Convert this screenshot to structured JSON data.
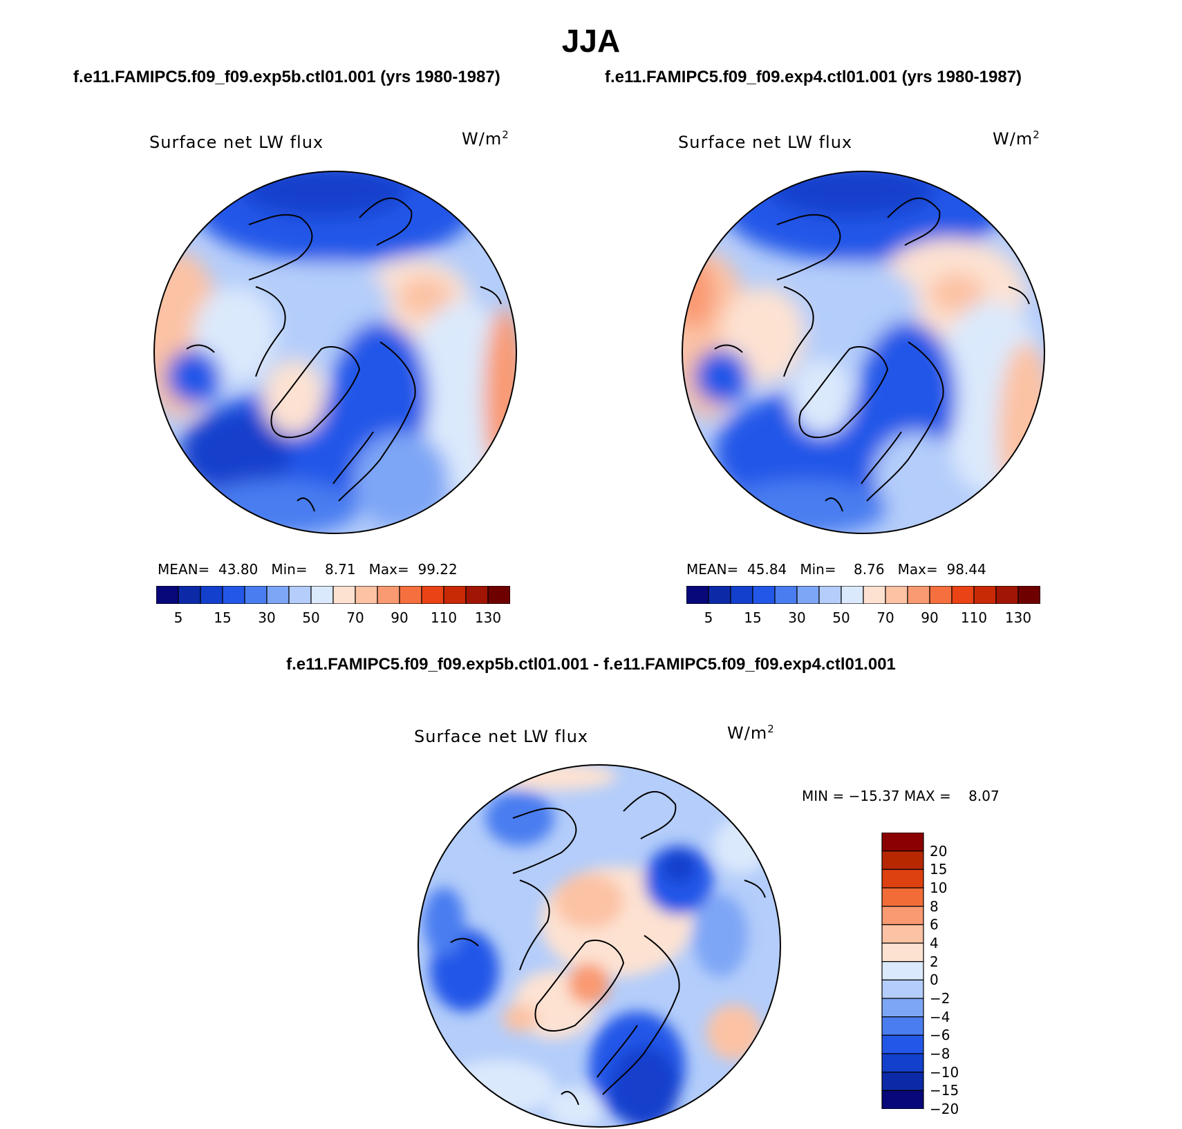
{
  "figure": {
    "season": "JJA",
    "case_a_title": "f.e11.FAMIPC5.f09_f09.exp5b.ctl01.001 (yrs 1980-1987)",
    "case_b_title": "f.e11.FAMIPC5.f09_f09.exp4.ctl01.001 (yrs 1980-1987)",
    "diff_title": "f.e11.FAMIPC5.f09_f09.exp5b.ctl01.001 - f.e11.FAMIPC5.f09_f09.exp4.ctl01.001"
  },
  "panels": {
    "left": {
      "variable": "Surface net LW flux",
      "units_base": "W/m",
      "units_exp": "2",
      "mean_label": "MEAN=",
      "mean": "43.80",
      "min_label": "Min=",
      "min": "8.71",
      "max_label": "Max=",
      "max": "99.22"
    },
    "right": {
      "variable": "Surface net LW flux",
      "units_base": "W/m",
      "units_exp": "2",
      "mean_label": "MEAN=",
      "mean": "45.84",
      "min_label": "Min=",
      "min": "8.76",
      "max_label": "Max=",
      "max": "98.44"
    },
    "diff": {
      "variable": "Surface net LW flux",
      "units_base": "W/m",
      "units_exp": "2",
      "min_label": "MIN =",
      "min": "−15.37",
      "max_label": "MAX =",
      "max": "8.07"
    }
  },
  "colorbars": {
    "main": {
      "colors": [
        "#08087a",
        "#0c2aa8",
        "#1340cc",
        "#2357e8",
        "#4a7df0",
        "#7ea6f6",
        "#b4cdfa",
        "#dbe9fc",
        "#fde2d2",
        "#fcc2a4",
        "#f99a72",
        "#f6703f",
        "#ea4315",
        "#c92a06",
        "#a01503",
        "#6e0000"
      ],
      "labels": [
        "5",
        "15",
        "30",
        "50",
        "70",
        "90",
        "110",
        "130"
      ]
    },
    "diff": {
      "colors": [
        "#8b0000",
        "#b82800",
        "#dd4110",
        "#f26c38",
        "#f99a72",
        "#fcc2a4",
        "#fde2d2",
        "#dbe9fc",
        "#b4cdfa",
        "#7ea6f6",
        "#4a7df0",
        "#2357e8",
        "#1340cc",
        "#0c2aa8",
        "#08087a"
      ],
      "labels": [
        "20",
        "15",
        "10",
        "8",
        "6",
        "4",
        "2",
        "0",
        "−2",
        "−4",
        "−6",
        "−8",
        "−10",
        "−15",
        "−20"
      ]
    }
  }
}
